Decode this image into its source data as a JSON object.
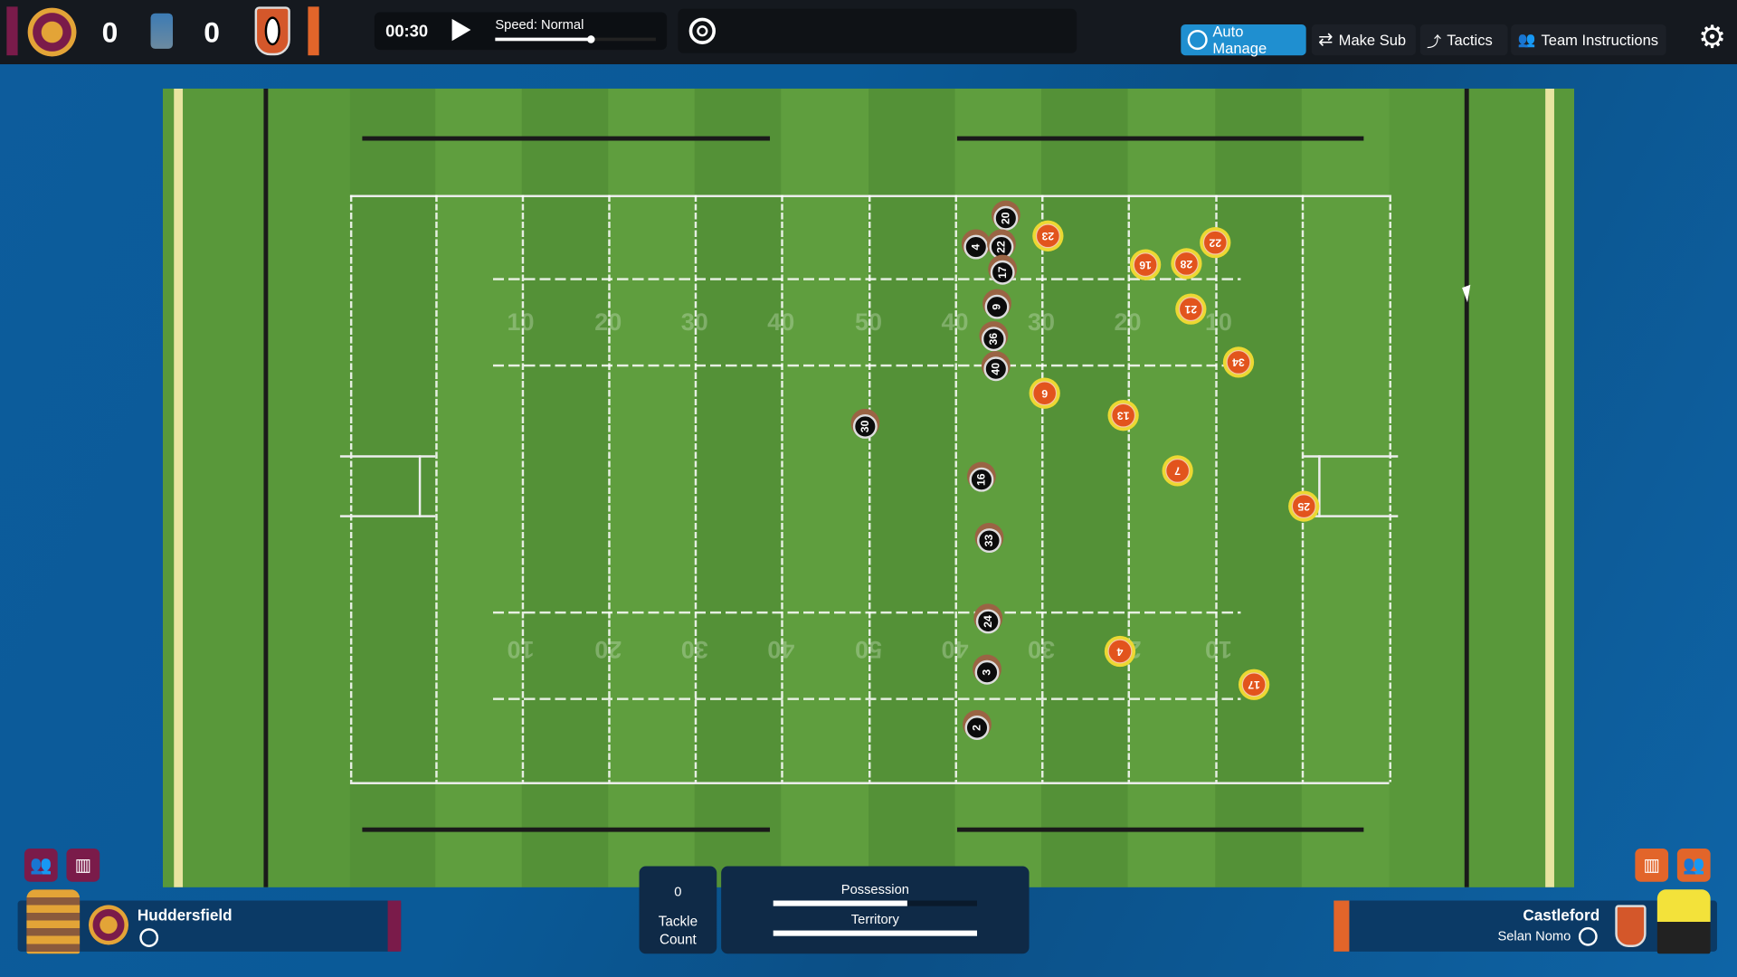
{
  "scoreboard": {
    "home_score": "0",
    "away_score": "0",
    "home_color": "#7a1b4a",
    "away_color": "#e2652a"
  },
  "clock": {
    "time": "00:30",
    "speed_label": "Speed: Normal",
    "speed_level": 0.6
  },
  "toolbar": {
    "auto_manage": "Auto Manage",
    "make_sub": "Make Sub",
    "tactics": "Tactics",
    "team_instructions": "Team Instructions",
    "accent": "#1f8fd0"
  },
  "field": {
    "yard_labels_top": [
      "10",
      "20",
      "30",
      "40",
      "50",
      "40",
      "30",
      "20",
      "10"
    ],
    "yard_labels_bottom": [
      "10",
      "20",
      "30",
      "40",
      "50",
      "40",
      "30",
      "20",
      "10"
    ]
  },
  "players": {
    "black": [
      "20",
      "4",
      "22",
      "17",
      "9",
      "36",
      "40",
      "30",
      "16",
      "33",
      "24",
      "3",
      "2"
    ],
    "orange": [
      "23",
      "16",
      "28",
      "22",
      "21",
      "34",
      "6",
      "13",
      "7",
      "25",
      "4",
      "17"
    ]
  },
  "home": {
    "name": "Huddersfield",
    "color": "#7a1b4a"
  },
  "away": {
    "name": "Castleford",
    "player": "Selan Nomo",
    "color": "#e2652a"
  },
  "stats": {
    "tackle_count": "0",
    "tackle_label_1": "Tackle",
    "tackle_label_2": "Count",
    "possession_label": "Possession",
    "possession": 0.66,
    "territory_label": "Territory",
    "territory": 1.0
  }
}
